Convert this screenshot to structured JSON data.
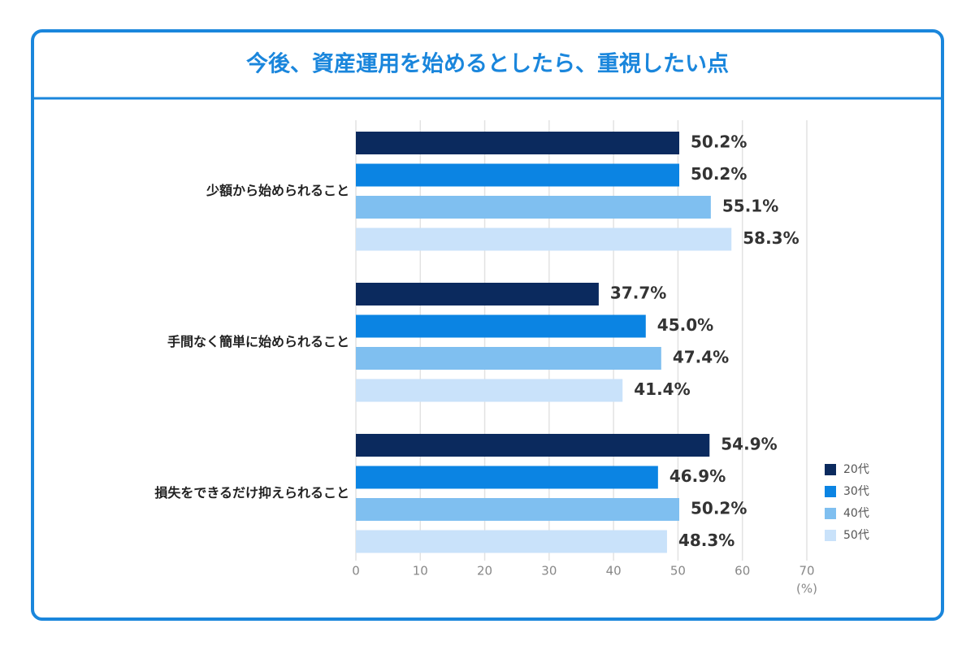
{
  "chart_data": {
    "type": "bar",
    "orientation": "horizontal",
    "title": "今後、資産運用を始めるとしたら、重視したい点",
    "categories": [
      "少額から始められること",
      "手間なく簡単に始められること",
      "損失をできるだけ抑えられること"
    ],
    "series": [
      {
        "name": "20代",
        "color": "#0b2a5e",
        "values": [
          50.2,
          37.7,
          54.9
        ],
        "value_labels": [
          "50.2%",
          "37.7%",
          "54.9%"
        ]
      },
      {
        "name": "30代",
        "color": "#0b84e3",
        "values": [
          50.2,
          45.0,
          46.9
        ],
        "value_labels": [
          "50.2%",
          "45.0%",
          "46.9%"
        ]
      },
      {
        "name": "40代",
        "color": "#7fbff0",
        "values": [
          55.1,
          47.4,
          50.2
        ],
        "value_labels": [
          "55.1%",
          "47.4%",
          "50.2%"
        ]
      },
      {
        "name": "50代",
        "color": "#c9e2fa",
        "values": [
          58.3,
          41.4,
          48.3
        ],
        "value_labels": [
          "58.3%",
          "41.4%",
          "48.3%"
        ]
      }
    ],
    "xlim": [
      0,
      70
    ],
    "xticks": [
      0,
      10,
      20,
      30,
      40,
      50,
      60,
      70
    ],
    "xlabel": "(%)",
    "grid": true,
    "legend": "right"
  }
}
